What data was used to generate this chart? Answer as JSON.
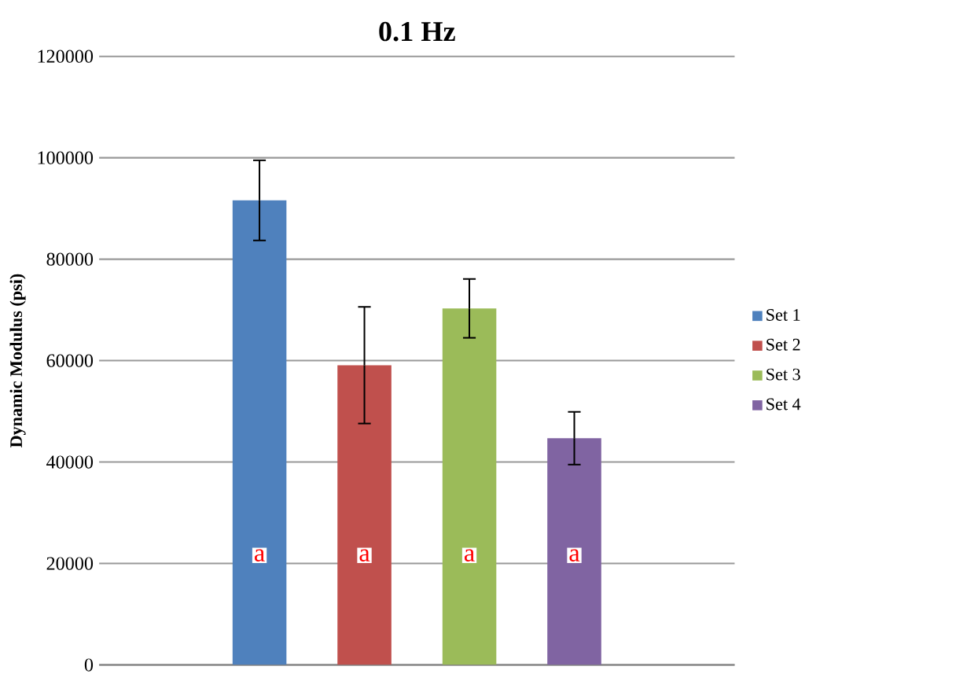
{
  "chart_data": {
    "type": "bar",
    "title": "0.1 Hz",
    "ylabel": "Dynamic Modulus (psi)",
    "categories": [
      null
    ],
    "series": [
      {
        "name": "Set 1",
        "color": "#4f81bd",
        "values": [
          91600
        ],
        "errors": [
          7900
        ]
      },
      {
        "name": "Set 2",
        "color": "#c0504d",
        "values": [
          59100
        ],
        "errors": [
          11500
        ]
      },
      {
        "name": "Set 3",
        "color": "#9bbb59",
        "values": [
          70300
        ],
        "errors": [
          5800
        ]
      },
      {
        "name": "Set 4",
        "color": "#8064a2",
        "values": [
          44700
        ],
        "errors": [
          5200
        ]
      }
    ],
    "annotations": [
      "a",
      "a",
      "a",
      "a"
    ],
    "ylim": [
      0,
      120000
    ],
    "yticks": [
      0,
      20000,
      40000,
      60000,
      80000,
      100000,
      120000
    ],
    "grid": "y",
    "legend": "right"
  }
}
